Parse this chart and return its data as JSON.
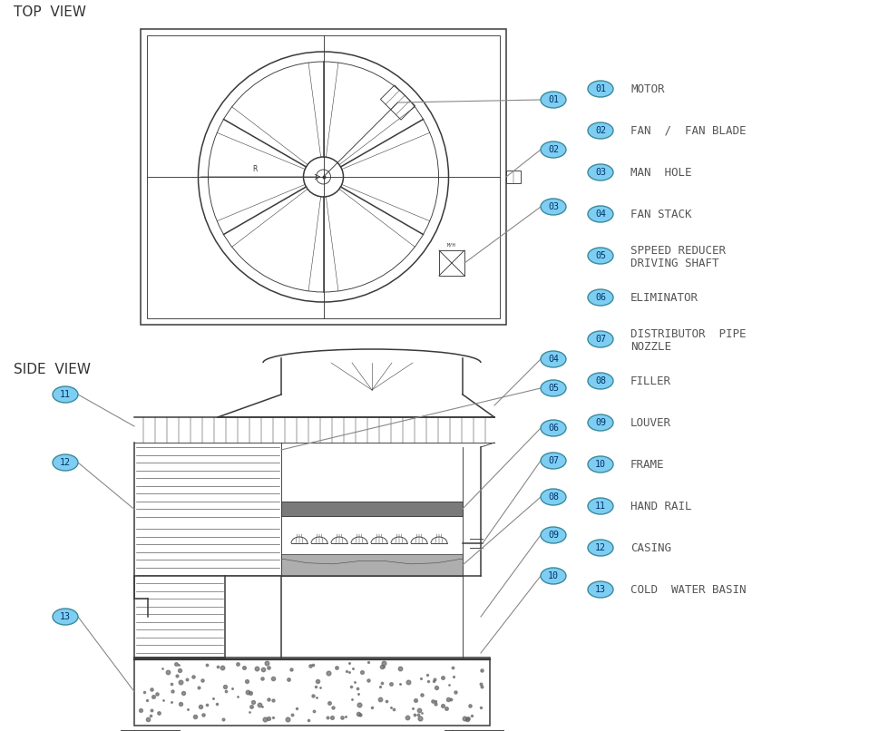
{
  "bg_color": "#ffffff",
  "line_color": "#3a3a3a",
  "label_bg": "#7ECEF4",
  "label_border": "#3a8a9a",
  "label_text": "#003366",
  "legend_text": "#555555",
  "top_view_label": "TOP  VIEW",
  "side_view_label": "SIDE  VIEW",
  "labels": [
    {
      "num": "01",
      "text": "MOTOR"
    },
    {
      "num": "02",
      "text": "FAN  /  FAN BLADE"
    },
    {
      "num": "03",
      "text": "MAN  HOLE"
    },
    {
      "num": "04",
      "text": "FAN STACK"
    },
    {
      "num": "05",
      "text": "SPPEED REDUCER\nDRIVING SHAFT"
    },
    {
      "num": "06",
      "text": "ELIMINATOR"
    },
    {
      "num": "07",
      "text": "DISTRIBUTOR  PIPE\nNOZZLE"
    },
    {
      "num": "08",
      "text": "FILLER"
    },
    {
      "num": "09",
      "text": "LOUVER"
    },
    {
      "num": "10",
      "text": "FRAME"
    },
    {
      "num": "11",
      "text": "HAND RAIL"
    },
    {
      "num": "12",
      "text": "CASING"
    },
    {
      "num": "13",
      "text": "COLD  WATER BASIN"
    }
  ]
}
